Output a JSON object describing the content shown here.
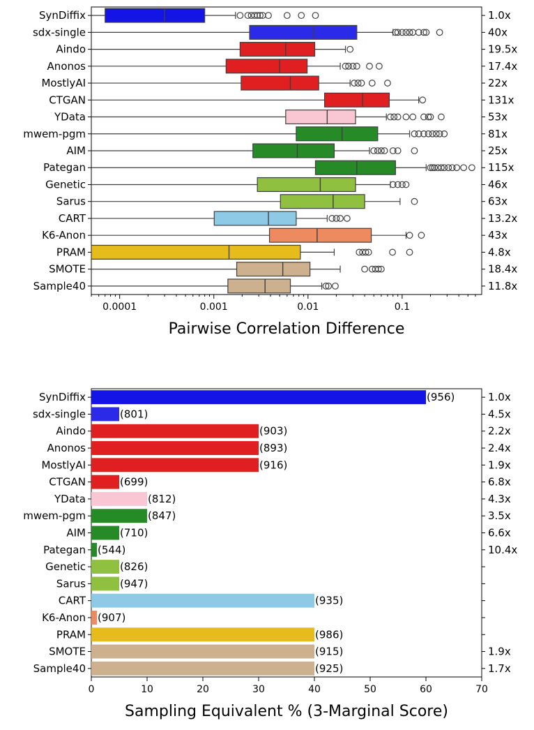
{
  "chart_data": [
    {
      "type": "box",
      "xlabel": "Pairwise Correlation Difference",
      "xscale": "log",
      "xlim": [
        5e-05,
        0.7
      ],
      "xticks": [
        0.0001,
        0.001,
        0.01,
        0.1
      ],
      "xtick_labels": [
        "0.0001",
        "0.001",
        "0.01",
        "0.1"
      ],
      "categories": [
        "SynDiffix",
        "sdx-single",
        "Aindo",
        "Anonos",
        "MostlyAI",
        "CTGAN",
        "YData",
        "mwem-pgm",
        "AIM",
        "Pategan",
        "Genetic",
        "Sarus",
        "CART",
        "K6-Anon",
        "PRAM",
        "SMOTE",
        "Sample40"
      ],
      "right_labels": [
        "1.0x",
        "40x",
        "19.5x",
        "17.4x",
        "22x",
        "131x",
        "53x",
        "81x",
        "25x",
        "115x",
        "46x",
        "63x",
        "13.2x",
        "43x",
        "4.8x",
        "18.4x",
        "11.8x"
      ],
      "colors": [
        "#1414e6",
        "#2a2ae8",
        "#e02020",
        "#e02020",
        "#e02020",
        "#e02020",
        "#f9c6d3",
        "#268a26",
        "#268a26",
        "#268a26",
        "#8fc040",
        "#8fc040",
        "#8ecae6",
        "#ee8a60",
        "#e6bc1c",
        "#cdb08e",
        "#cdb08e"
      ],
      "boxes": [
        {
          "whislo": 1e-05,
          "q1": 7e-05,
          "med": 0.0003,
          "q3": 0.0008,
          "whishi": 0.0017,
          "fliers": [
            0.0019,
            0.0023,
            0.0025,
            0.0027,
            0.0029,
            0.0031,
            0.0033,
            0.0038,
            0.006,
            0.0085,
            0.012
          ]
        },
        {
          "whislo": 1e-05,
          "q1": 0.0024,
          "med": 0.0115,
          "q3": 0.033,
          "whishi": 0.08,
          "fliers": [
            0.085,
            0.09,
            0.1,
            0.11,
            0.12,
            0.13,
            0.15,
            0.17,
            0.18,
            0.25
          ]
        },
        {
          "whislo": 1e-05,
          "q1": 0.0019,
          "med": 0.0058,
          "q3": 0.0118,
          "whishi": 0.025,
          "fliers": [
            0.028
          ]
        },
        {
          "whislo": 1e-05,
          "q1": 0.00135,
          "med": 0.005,
          "q3": 0.0098,
          "whishi": 0.022,
          "fliers": [
            0.025,
            0.027,
            0.03,
            0.033,
            0.045,
            0.057
          ]
        },
        {
          "whislo": 1e-05,
          "q1": 0.00195,
          "med": 0.0065,
          "q3": 0.013,
          "whishi": 0.028,
          "fliers": [
            0.031,
            0.034,
            0.037,
            0.048,
            0.07
          ]
        },
        {
          "whislo": 1e-05,
          "q1": 0.015,
          "med": 0.038,
          "q3": 0.073,
          "whishi": 0.15,
          "fliers": [
            0.165
          ]
        },
        {
          "whislo": 1e-05,
          "q1": 0.0058,
          "med": 0.016,
          "q3": 0.032,
          "whishi": 0.068,
          "fliers": [
            0.075,
            0.082,
            0.09,
            0.11,
            0.13,
            0.17,
            0.19,
            0.2,
            0.26
          ]
        },
        {
          "whislo": 1e-05,
          "q1": 0.0075,
          "med": 0.023,
          "q3": 0.055,
          "whishi": 0.12,
          "fliers": [
            0.135,
            0.15,
            0.17,
            0.19,
            0.21,
            0.23,
            0.25,
            0.28
          ]
        },
        {
          "whislo": 1e-05,
          "q1": 0.0026,
          "med": 0.0077,
          "q3": 0.019,
          "whishi": 0.045,
          "fliers": [
            0.05,
            0.055,
            0.06,
            0.065,
            0.08,
            0.09,
            0.135
          ]
        },
        {
          "whislo": 1e-05,
          "q1": 0.012,
          "med": 0.033,
          "q3": 0.085,
          "whishi": 0.18,
          "fliers": [
            0.2,
            0.21,
            0.22,
            0.24,
            0.26,
            0.28,
            0.31,
            0.34,
            0.38,
            0.45,
            0.55
          ]
        },
        {
          "whislo": 1e-05,
          "q1": 0.0029,
          "med": 0.0135,
          "q3": 0.032,
          "whishi": 0.075,
          "fliers": [
            0.08,
            0.09,
            0.1,
            0.11
          ]
        },
        {
          "whislo": 1e-05,
          "q1": 0.0051,
          "med": 0.0185,
          "q3": 0.04,
          "whishi": 0.095,
          "fliers": [
            0.135
          ]
        },
        {
          "whislo": 1e-05,
          "q1": 0.00101,
          "med": 0.0038,
          "q3": 0.0075,
          "whishi": 0.016,
          "fliers": [
            0.018,
            0.02,
            0.022,
            0.026
          ]
        },
        {
          "whislo": 1e-05,
          "q1": 0.0039,
          "med": 0.0125,
          "q3": 0.047,
          "whishi": 0.11,
          "fliers": [
            0.12,
            0.16
          ]
        },
        {
          "whislo": 1e-05,
          "q1": 1e-05,
          "med": 0.00145,
          "q3": 0.0083,
          "whishi": 0.019,
          "fliers": [
            0.035,
            0.038,
            0.041,
            0.044,
            0.079,
            0.12
          ]
        },
        {
          "whislo": 1e-05,
          "q1": 0.00175,
          "med": 0.0054,
          "q3": 0.0105,
          "whishi": 0.022,
          "fliers": [
            0.04,
            0.048,
            0.052,
            0.056,
            0.06
          ]
        },
        {
          "whislo": 1e-05,
          "q1": 0.00141,
          "med": 0.0035,
          "q3": 0.0065,
          "whishi": 0.014,
          "fliers": [
            0.0155,
            0.0165,
            0.0195
          ]
        }
      ]
    },
    {
      "type": "bar",
      "orientation": "horizontal",
      "xlabel": "Sampling Equivalent % (3-Marginal Score)",
      "xlim": [
        0,
        70
      ],
      "xticks": [
        0,
        10,
        20,
        30,
        40,
        50,
        60,
        70
      ],
      "xtick_labels": [
        "0",
        "10",
        "20",
        "30",
        "40",
        "50",
        "60",
        "70"
      ],
      "categories": [
        "SynDiffix",
        "sdx-single",
        "Aindo",
        "Anonos",
        "MostlyAI",
        "CTGAN",
        "YData",
        "mwem-pgm",
        "AIM",
        "Pategan",
        "Genetic",
        "Sarus",
        "CART",
        "K6-Anon",
        "PRAM",
        "SMOTE",
        "Sample40"
      ],
      "values": [
        60,
        5,
        30,
        30,
        30,
        5,
        10,
        10,
        5,
        1,
        5,
        5,
        40,
        1,
        40,
        40,
        40
      ],
      "bar_labels": [
        "(956)",
        "(801)",
        "(903)",
        "(893)",
        "(916)",
        "(699)",
        "(812)",
        "(847)",
        "(710)",
        "(544)",
        "(826)",
        "(947)",
        "(935)",
        "(907)",
        "(986)",
        "(915)",
        "(925)"
      ],
      "right_labels": [
        "1.0x",
        "4.5x",
        "2.2x",
        "2.4x",
        "1.9x",
        "6.8x",
        "4.3x",
        "3.5x",
        "6.6x",
        "10.4x",
        "",
        "",
        "",
        "",
        "",
        "1.9x",
        "1.7x"
      ],
      "colors": [
        "#1414e6",
        "#2a2ae8",
        "#e02020",
        "#e02020",
        "#e02020",
        "#e02020",
        "#f9c6d3",
        "#268a26",
        "#268a26",
        "#268a26",
        "#8fc040",
        "#8fc040",
        "#8ecae6",
        "#ee8a60",
        "#e6bc1c",
        "#cdb08e",
        "#cdb08e"
      ]
    }
  ]
}
